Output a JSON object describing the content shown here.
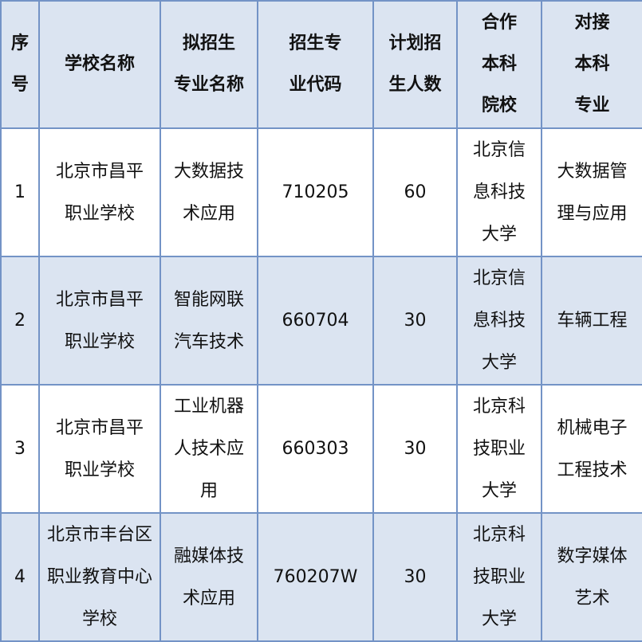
{
  "columns": [
    "序\n号",
    "学校名称",
    "拟招生\n专业名称",
    "招生专\n业代码",
    "计划招\n生人数",
    "合作\n本科\n院校",
    "对接\n本科\n专业"
  ],
  "rows": [
    [
      "1",
      "北京市昌平\n职业学校",
      "大数据技\n术应用",
      "710205",
      "60",
      "北京信\n息科技\n大学",
      "大数据管\n理与应用"
    ],
    [
      "2",
      "北京市昌平\n职业学校",
      "智能网联\n汽车技术",
      "660704",
      "30",
      "北京信\n息科技\n大学",
      "车辆工程"
    ],
    [
      "3",
      "北京市昌平\n职业学校",
      "工业机器\n人技术应\n用",
      "660303",
      "30",
      "北京科\n技职业\n大学",
      "机械电子\n工程技术"
    ],
    [
      "4",
      "北京市丰台区\n职业教育中心\n学校",
      "融媒体技\n术应用",
      "760207W",
      "30",
      "北京科\n技职业\n大学",
      "数字媒体\n艺术"
    ]
  ],
  "colors": {
    "border": "#7393c6",
    "header_bg": "#dbe4f1",
    "alt_row_bg": "#dbe4f1"
  }
}
